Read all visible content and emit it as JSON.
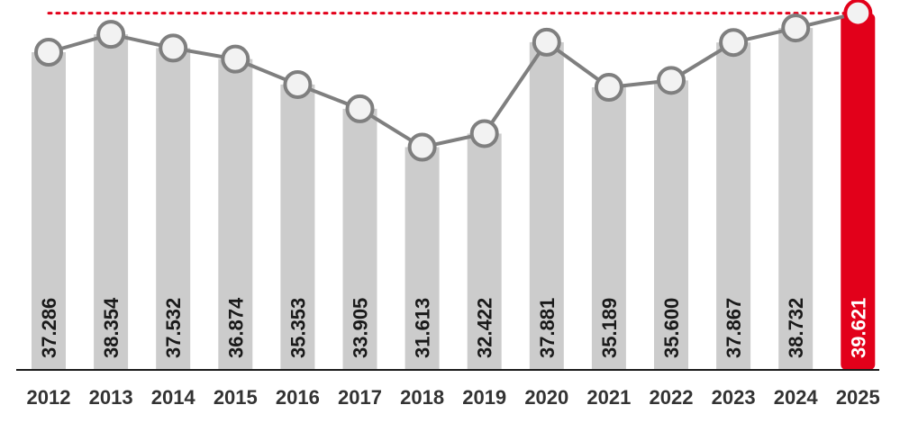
{
  "chart_data": {
    "type": "bar",
    "categories": [
      "2012",
      "2013",
      "2014",
      "2015",
      "2016",
      "2017",
      "2018",
      "2019",
      "2020",
      "2021",
      "2022",
      "2023",
      "2024",
      "2025"
    ],
    "values": [
      37.286,
      38.354,
      37.532,
      36.874,
      35.353,
      33.905,
      31.613,
      32.422,
      37.881,
      35.189,
      35.6,
      37.867,
      38.732,
      39.621
    ],
    "value_labels": [
      "37.286",
      "38.354",
      "37.532",
      "36.874",
      "35.353",
      "33.905",
      "31.613",
      "32.422",
      "37.881",
      "35.189",
      "35.600",
      "37.867",
      "38.732",
      "39.621"
    ],
    "highlight_index": 13,
    "overlay_line": "line with circular markers connecting the same values",
    "reference_line": {
      "value": 39.621,
      "style": "dotted"
    },
    "title": "",
    "xlabel": "",
    "ylabel": "",
    "grid": false,
    "legend": "none"
  },
  "colors": {
    "bar": "#cccccc",
    "highlight_bar": "#e2001a",
    "line": "#7f7f7f",
    "marker_fill": "#f2f2f2",
    "marker_stroke": "#7f7f7f",
    "highlight_marker_stroke": "#e2001a",
    "reference_line": "#e2001a",
    "axis": "#1a1a1a",
    "label_text": "#1a1a1a",
    "highlight_label_text": "#ffffff"
  }
}
